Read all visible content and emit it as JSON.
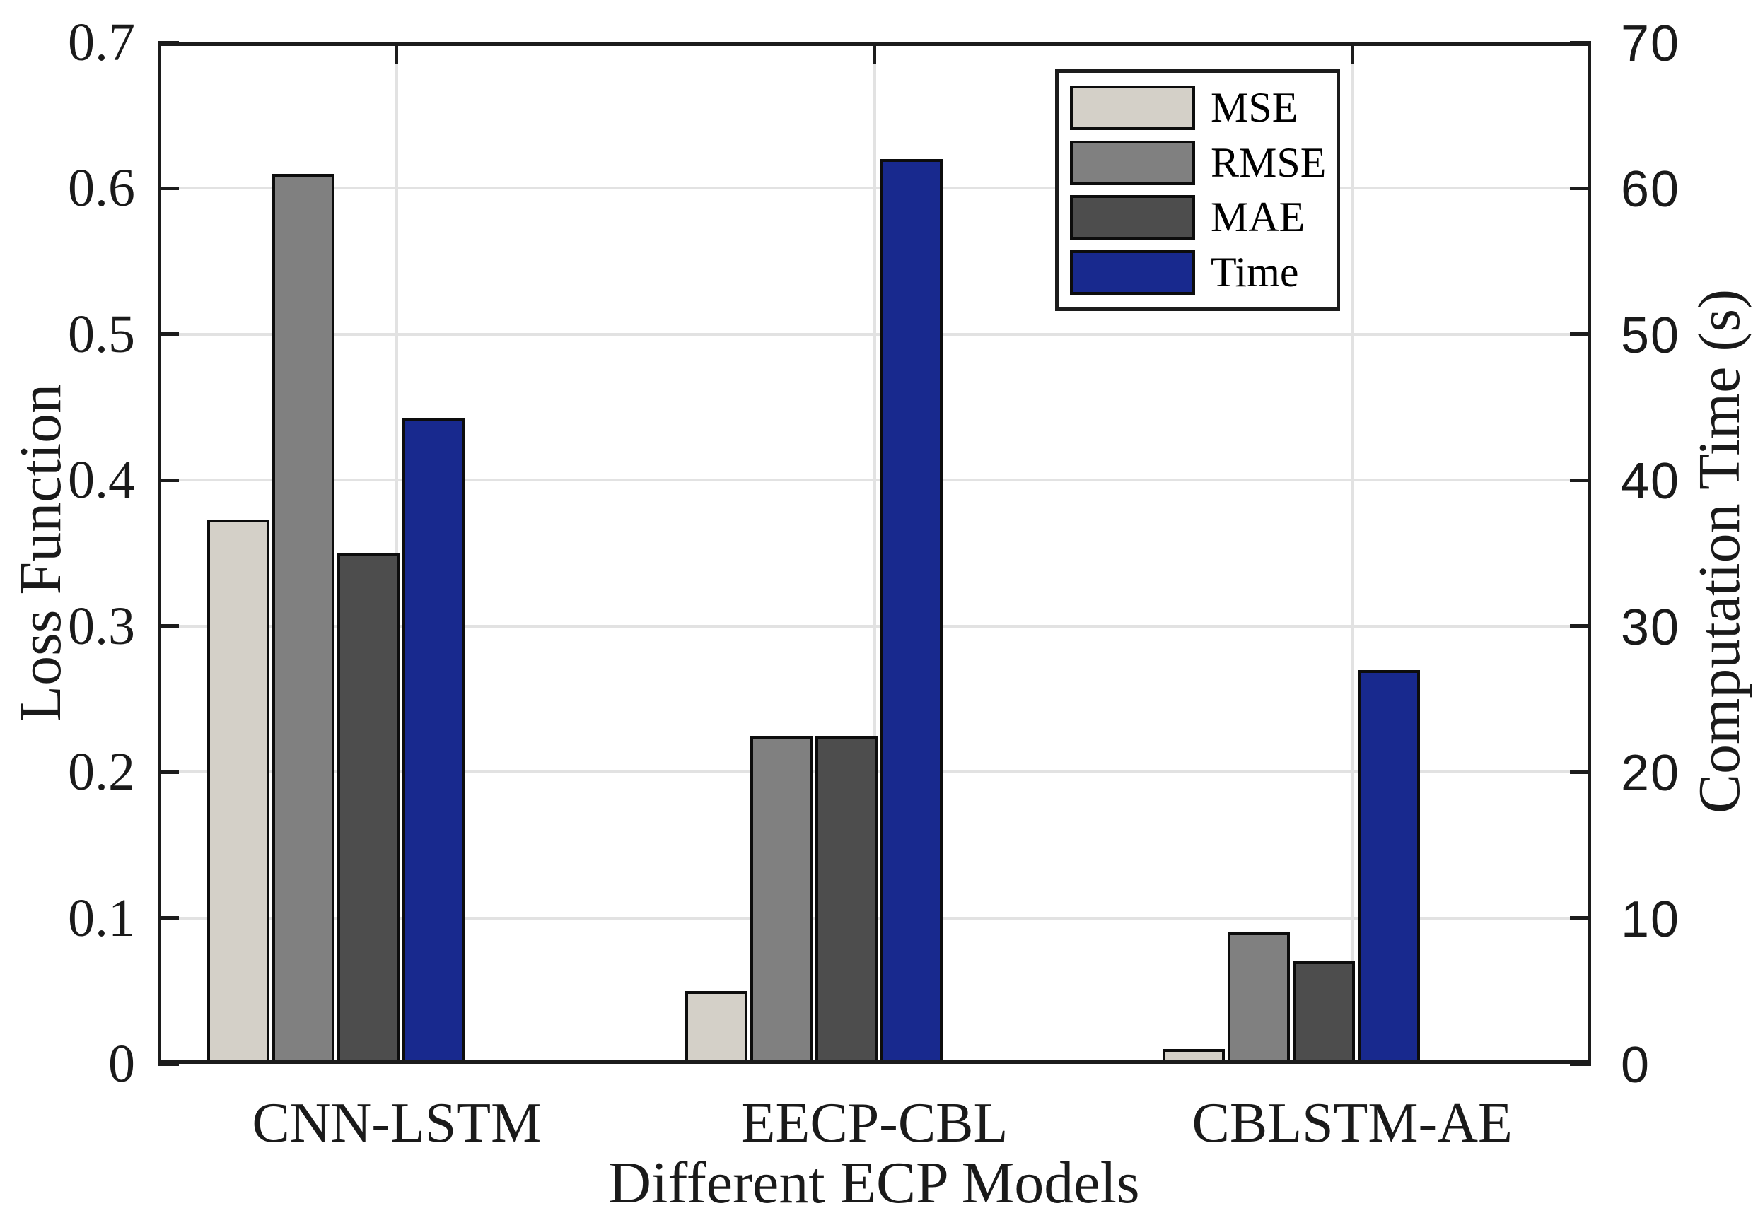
{
  "chart_data": {
    "type": "bar",
    "title": "",
    "xlabel": "Different ECP Models",
    "ylabel_left": "Loss Function",
    "ylabel_right": "Computation Time (s)",
    "categories": [
      "CNN-LSTM",
      "EECP-CBL",
      "CBLSTM-AE"
    ],
    "series": [
      {
        "name": "MSE",
        "axis": "left",
        "color": "#d4d0c8",
        "values": [
          0.373,
          0.05,
          0.01
        ]
      },
      {
        "name": "RMSE",
        "axis": "left",
        "color": "#808080",
        "values": [
          0.61,
          0.225,
          0.09
        ]
      },
      {
        "name": "MAE",
        "axis": "left",
        "color": "#4d4d4d",
        "values": [
          0.35,
          0.225,
          0.07
        ]
      },
      {
        "name": "Time",
        "axis": "right",
        "color": "#18298e",
        "values": [
          44.3,
          62,
          27
        ]
      }
    ],
    "ylim_left": [
      0,
      0.7
    ],
    "ylim_right": [
      0,
      70
    ],
    "yticks_left": [
      "0",
      "0.1",
      "0.2",
      "0.3",
      "0.4",
      "0.5",
      "0.6",
      "0.7"
    ],
    "yticks_right": [
      "0",
      "10",
      "20",
      "30",
      "40",
      "50",
      "60",
      "70"
    ],
    "grid": true,
    "legend_position": "inside upper right",
    "legend_items": [
      "MSE",
      "RMSE",
      "MAE",
      "Time"
    ],
    "colors": {
      "axis": "#1c1c1c",
      "gridline": "#e2e2e2",
      "bar_edge": "#0d0d0d",
      "background": "#ffffff"
    }
  }
}
